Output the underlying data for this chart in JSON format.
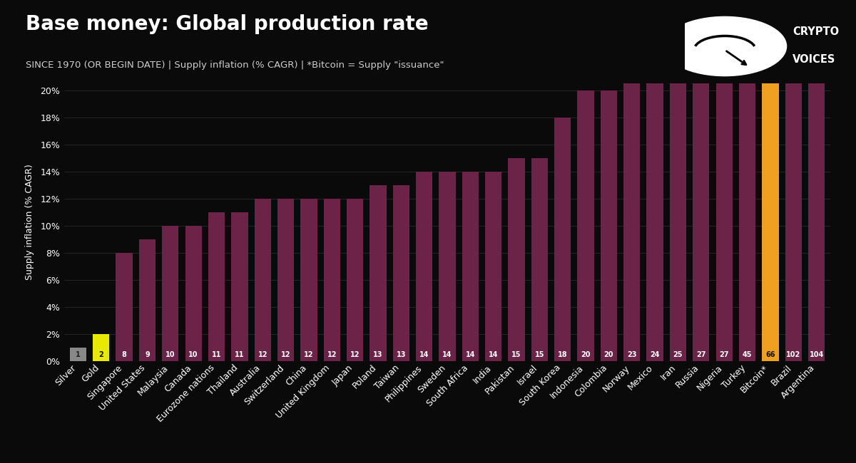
{
  "title": "Base money: Global production rate",
  "subtitle": "SINCE 1970 (OR BEGIN DATE) | Supply inflation (% CAGR) | *Bitcoin = Supply \"issuance\"",
  "ylabel": "Supply inflation (% CAGR)",
  "background_color": "#0a0a0a",
  "text_color": "#ffffff",
  "subtitle_color": "#cccccc",
  "grid_color": "#2a2a2a",
  "bar_color_default": "#6b2448",
  "bar_color_silver": "#888888",
  "bar_color_gold": "#e8e800",
  "bar_color_bitcoin": "#f0a020",
  "categories": [
    "Silver",
    "Gold",
    "Singapore",
    "United States",
    "Malaysia",
    "Canada",
    "Eurozone nations",
    "Thailand",
    "Australia",
    "Switzerland",
    "China",
    "United Kingdom",
    "Japan",
    "Poland",
    "Taiwan",
    "Philippines",
    "Sweden",
    "South Africa",
    "India",
    "Pakistan",
    "Israel",
    "South Korea",
    "Indonesia",
    "Colombia",
    "Norway",
    "Mexico",
    "Iran",
    "Russia",
    "Nigeria",
    "Turkey",
    "Bitcoin*",
    "Brazil",
    "Argentina"
  ],
  "values": [
    1,
    2,
    8,
    9,
    10,
    10,
    11,
    11,
    12,
    12,
    12,
    12,
    12,
    13,
    13,
    14,
    14,
    14,
    14,
    15,
    15,
    18,
    20,
    20,
    23,
    24,
    25,
    27,
    27,
    45,
    66,
    102,
    104
  ],
  "bar_colors": [
    "#888888",
    "#e8e800",
    "#6b2448",
    "#6b2448",
    "#6b2448",
    "#6b2448",
    "#6b2448",
    "#6b2448",
    "#6b2448",
    "#6b2448",
    "#6b2448",
    "#6b2448",
    "#6b2448",
    "#6b2448",
    "#6b2448",
    "#6b2448",
    "#6b2448",
    "#6b2448",
    "#6b2448",
    "#6b2448",
    "#6b2448",
    "#6b2448",
    "#6b2448",
    "#6b2448",
    "#6b2448",
    "#6b2448",
    "#6b2448",
    "#6b2448",
    "#6b2448",
    "#6b2448",
    "#f0a020",
    "#6b2448",
    "#6b2448"
  ],
  "ylim": [
    0,
    20.5
  ],
  "yticks": [
    0,
    2,
    4,
    6,
    8,
    10,
    12,
    14,
    16,
    18,
    20
  ],
  "title_fontsize": 20,
  "subtitle_fontsize": 9.5,
  "axis_label_fontsize": 9,
  "tick_fontsize": 9,
  "bar_label_fontsize": 7,
  "logo_text": "CRYPTO\nVOICES"
}
